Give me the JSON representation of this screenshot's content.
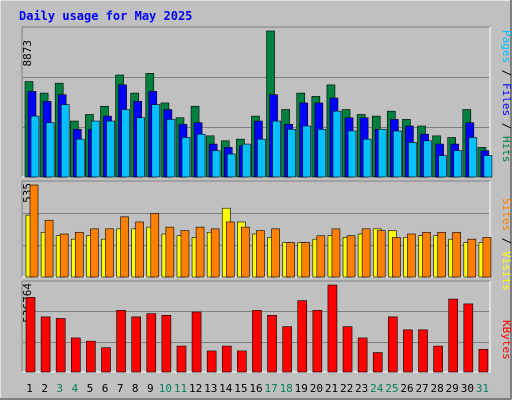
{
  "chart_data": {
    "type": "bar",
    "title": "Daily usage for May 2025",
    "categories": [
      "1",
      "2",
      "3",
      "4",
      "5",
      "6",
      "7",
      "8",
      "9",
      "10",
      "11",
      "12",
      "13",
      "14",
      "15",
      "16",
      "17",
      "18",
      "19",
      "20",
      "21",
      "22",
      "23",
      "24",
      "25",
      "26",
      "27",
      "28",
      "29",
      "30",
      "31"
    ],
    "weekend_days": [
      "3",
      "4",
      "10",
      "11",
      "17",
      "18",
      "24",
      "25",
      "31"
    ],
    "panels": [
      {
        "name": "top",
        "ylabel_parts": [
          "Pages",
          "Files",
          "Hits"
        ],
        "ymax_label": "8873",
        "ymax": 8873,
        "series": [
          {
            "name": "Hits",
            "color": "#008040",
            "values": [
              5800,
              5100,
              5700,
              3400,
              3800,
              4300,
              6200,
              5100,
              6300,
              4500,
              3600,
              4300,
              2500,
              2200,
              2300,
              3700,
              8873,
              4100,
              5100,
              4900,
              5600,
              4100,
              3800,
              3700,
              4000,
              3500,
              3100,
              2500,
              2400,
              4100,
              1800
            ]
          },
          {
            "name": "Files",
            "color": "#0000ff",
            "values": [
              5200,
              4600,
              5000,
              2900,
              2900,
              3700,
              5600,
              4600,
              5200,
              4100,
              3200,
              3300,
              2000,
              1800,
              1900,
              3400,
              5000,
              3200,
              4500,
              4500,
              4800,
              3600,
              3600,
              2900,
              3500,
              3100,
              2600,
              2000,
              2000,
              3300,
              1600
            ]
          },
          {
            "name": "Pages",
            "color": "#00c0ff",
            "values": [
              3700,
              3300,
              4400,
              2300,
              3400,
              3400,
              4100,
              3600,
              4400,
              3500,
              2400,
              2600,
              1600,
              1400,
              2000,
              2300,
              3400,
              2900,
              3100,
              2900,
              4000,
              2800,
              2300,
              2900,
              2800,
              2100,
              2200,
              1300,
              1600,
              2400,
              1300
            ]
          }
        ]
      },
      {
        "name": "middle",
        "ylabel_parts": [
          "Sites",
          "Visits"
        ],
        "ymax_label": "535",
        "ymax": 535,
        "series": [
          {
            "name": "Visits",
            "color": "#ffff00",
            "values": [
              360,
              260,
              240,
              220,
              240,
              220,
              280,
              280,
              290,
              250,
              240,
              230,
              260,
              400,
              320,
              250,
              230,
              200,
              200,
              220,
              240,
              230,
              250,
              280,
              270,
              230,
              240,
              240,
              220,
              200,
              200
            ]
          },
          {
            "name": "Sites",
            "color": "#ff8000",
            "values": [
              535,
              330,
              250,
              260,
              280,
              280,
              350,
              320,
              370,
              290,
              270,
              290,
              280,
              320,
              290,
              270,
              280,
              200,
              200,
              240,
              280,
              240,
              280,
              270,
              230,
              250,
              260,
              260,
              260,
              220,
              230
            ]
          }
        ]
      },
      {
        "name": "bottom",
        "ylabel_parts": [
          "KBytes"
        ],
        "ymax_label": "536764",
        "ymax": 536764,
        "series": [
          {
            "name": "KBytes",
            "color": "#ff0000",
            "values": [
              460000,
              340000,
              330000,
              210000,
              190000,
              150000,
              380000,
              340000,
              360000,
              350000,
              160000,
              370000,
              130000,
              160000,
              130000,
              380000,
              350000,
              280000,
              440000,
              380000,
              536764,
              280000,
              210000,
              120000,
              340000,
              260000,
              260000,
              160000,
              450000,
              420000,
              140000
            ]
          }
        ]
      }
    ],
    "colors": {
      "background": "#c0c0c0",
      "gridline": "#808080",
      "title_color": "#0000ff",
      "weekday_label": "#000000",
      "weekend_label": "#00805c"
    }
  }
}
